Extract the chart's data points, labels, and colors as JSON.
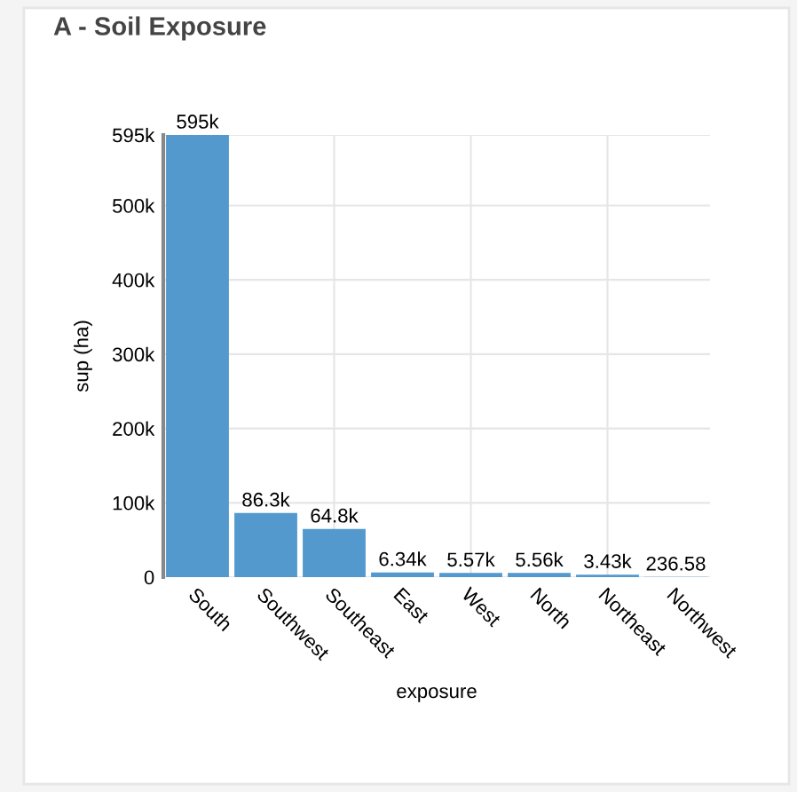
{
  "chart_data": {
    "type": "bar",
    "title": "A - Soil Exposure",
    "xlabel": "exposure",
    "ylabel": "sup (ha)",
    "categories": [
      "South",
      "Southwest",
      "Southeast",
      "East",
      "West",
      "North",
      "Northeast",
      "Northwest"
    ],
    "values": [
      595000,
      86300,
      64800,
      6340,
      5570,
      5560,
      3430,
      236.58
    ],
    "value_labels": [
      "595k",
      "86.3k",
      "64.8k",
      "6.34k",
      "5.57k",
      "5.56k",
      "3.43k",
      "236.58"
    ],
    "color": "#5499cd",
    "ylim": [
      0,
      595000
    ],
    "yticks": [
      0,
      {
        "value": 100000,
        "label": "100k"
      },
      {
        "value": 200000,
        "label": "200k"
      },
      {
        "value": 300000,
        "label": "300k"
      },
      {
        "value": 400000,
        "label": "400k"
      },
      {
        "value": 500000,
        "label": "500k"
      },
      {
        "value": 595000,
        "label": "595k"
      }
    ],
    "grid": true
  }
}
